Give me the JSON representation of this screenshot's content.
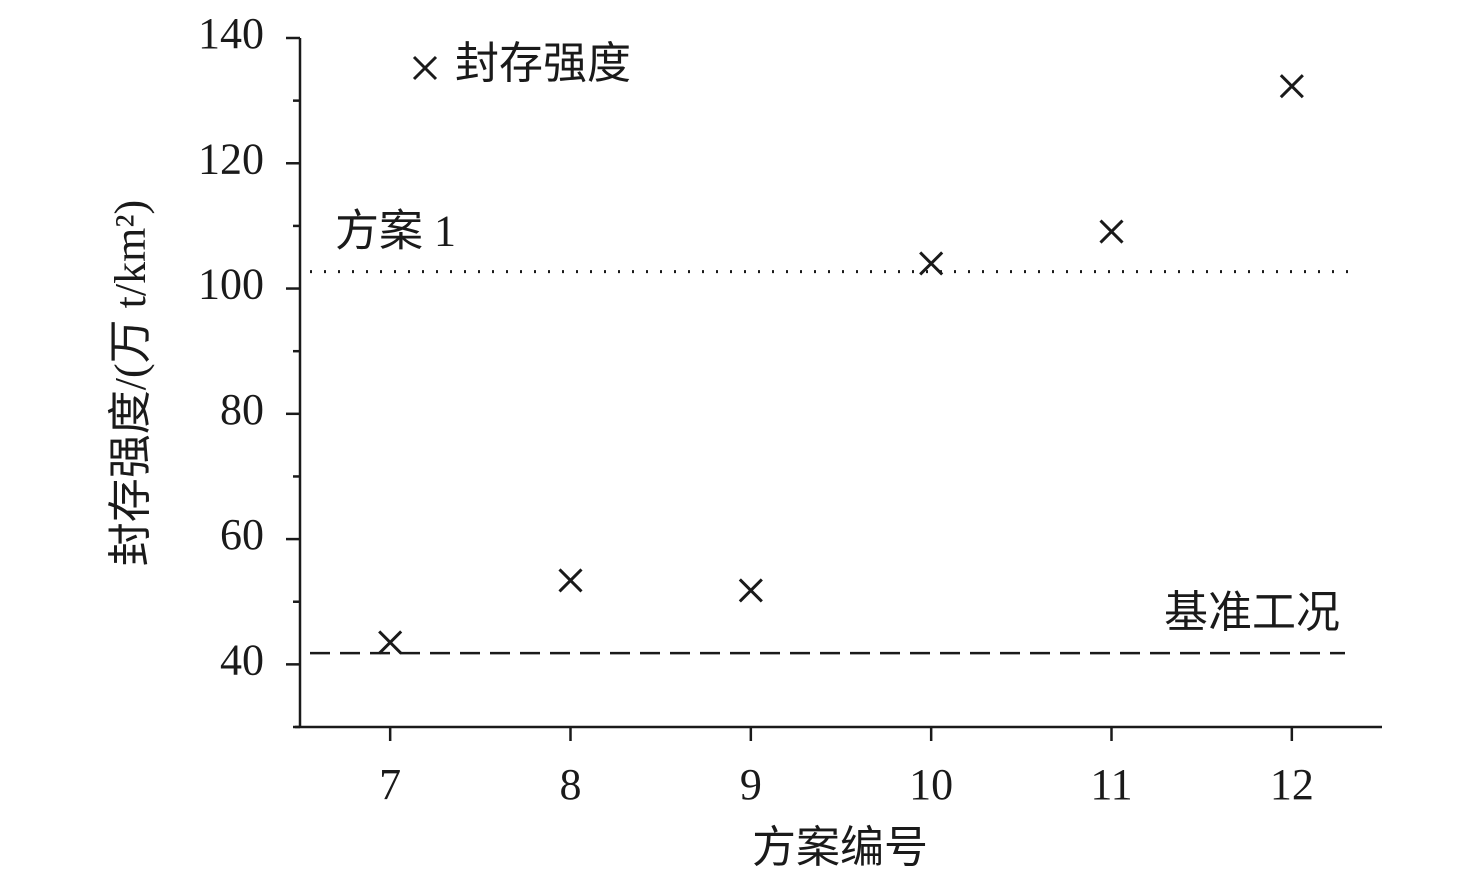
{
  "chart_data": {
    "type": "scatter",
    "x_label": "方案编号",
    "y_label": "封存强度/(万 t/km²)",
    "x": [
      7,
      8,
      9,
      10,
      11,
      12
    ],
    "series": [
      {
        "name": "封存强度",
        "color": "#1a1a1a",
        "marker": "x",
        "values": [
          43.5,
          53.4,
          51.8,
          104,
          109.1,
          132.3
        ]
      }
    ],
    "xlim": [
      6.5,
      12.5
    ],
    "xticks": [
      7,
      8,
      9,
      10,
      11,
      12
    ],
    "ylim": [
      30,
      140
    ],
    "yticks": [
      40,
      60,
      80,
      100,
      120,
      140
    ],
    "yminorticks": [
      30,
      50,
      70,
      90,
      110,
      130
    ],
    "reference_lines": [
      {
        "label": "方案 1",
        "value": 102.7,
        "style": "dotted"
      },
      {
        "label": "基准工况",
        "value": 41.8,
        "style": "dashed"
      }
    ],
    "grid": false,
    "legend": "upper left"
  }
}
